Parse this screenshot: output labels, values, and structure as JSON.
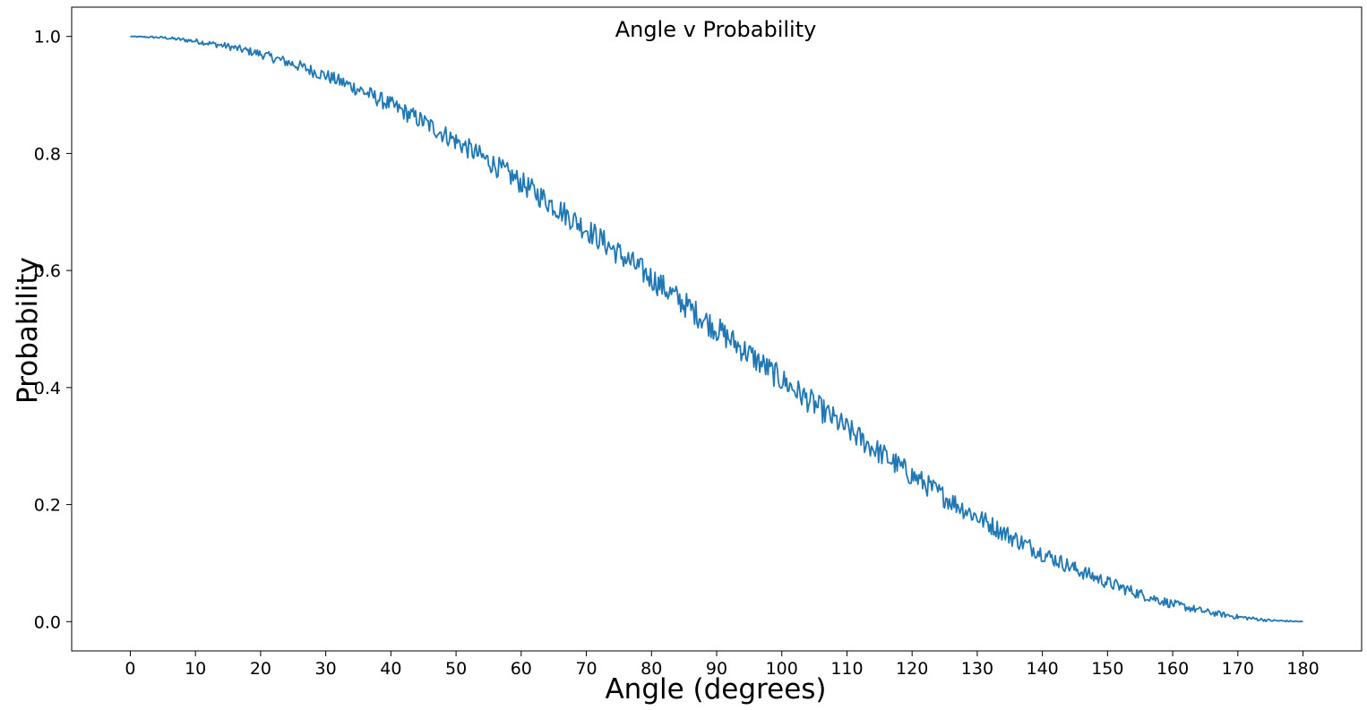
{
  "chart_data": {
    "type": "line",
    "title": "Angle v Probability",
    "xlabel": "Angle (degrees)",
    "ylabel": "Probability",
    "xlim": [
      -9,
      189
    ],
    "ylim": [
      -0.05,
      1.05
    ],
    "xticks": [
      0,
      10,
      20,
      30,
      40,
      50,
      60,
      70,
      80,
      90,
      100,
      110,
      120,
      130,
      140,
      150,
      160,
      170,
      180
    ],
    "xtick_labels": [
      "0",
      "10",
      "20",
      "30",
      "40",
      "50",
      "60",
      "70",
      "80",
      "90",
      "100",
      "110",
      "120",
      "130",
      "140",
      "150",
      "160",
      "170",
      "180"
    ],
    "yticks": [
      0.0,
      0.2,
      0.4,
      0.6,
      0.8,
      1.0
    ],
    "ytick_labels": [
      "0.0",
      "0.2",
      "0.4",
      "0.6",
      "0.8",
      "1.0"
    ],
    "grid": false,
    "line_color": "#1f77b4",
    "series": [
      {
        "x": [
          0,
          5,
          10,
          15,
          20,
          25,
          30,
          35,
          40,
          45,
          50,
          55,
          60,
          65,
          70,
          75,
          80,
          85,
          90,
          95,
          100,
          105,
          110,
          115,
          120,
          125,
          130,
          135,
          140,
          145,
          150,
          155,
          160,
          165,
          170,
          175,
          180
        ],
        "values": [
          1.0,
          0.998,
          0.992,
          0.983,
          0.97,
          0.953,
          0.933,
          0.91,
          0.883,
          0.854,
          0.821,
          0.787,
          0.75,
          0.711,
          0.671,
          0.629,
          0.587,
          0.543,
          0.5,
          0.457,
          0.413,
          0.371,
          0.329,
          0.289,
          0.25,
          0.213,
          0.179,
          0.146,
          0.117,
          0.09,
          0.067,
          0.047,
          0.03,
          0.017,
          0.008,
          0.002,
          0.0
        ]
      }
    ]
  }
}
